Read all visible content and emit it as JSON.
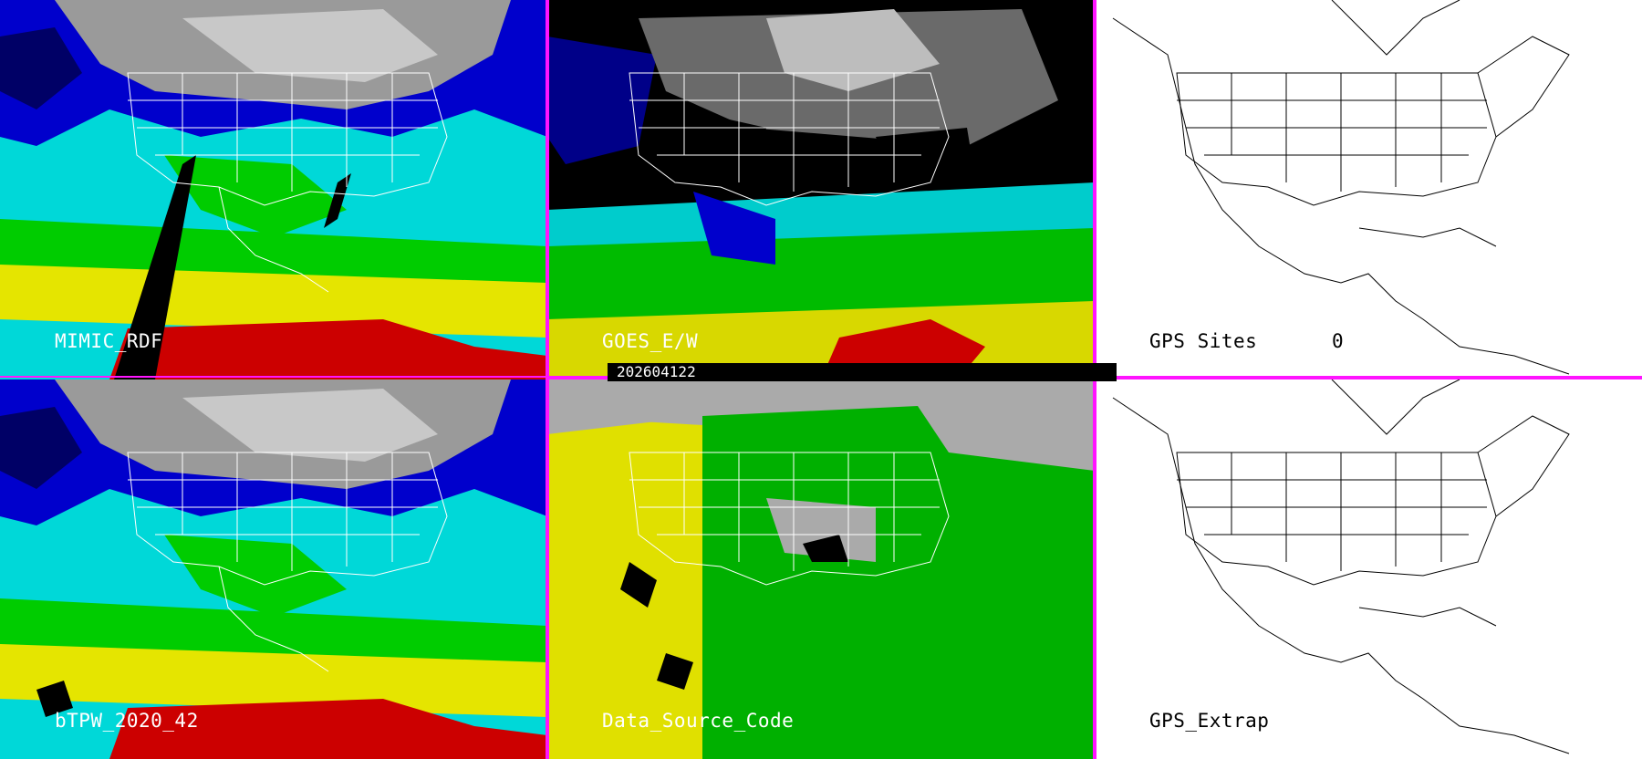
{
  "timestamp": "202604122",
  "panels": [
    {
      "label": "MIMIC_RDF",
      "theme": "tpw"
    },
    {
      "label": "GOES_E/W",
      "theme": "goes"
    },
    {
      "label": "GPS Sites",
      "count": "0",
      "theme": "white"
    },
    {
      "label": "bTPW_2020_42",
      "theme": "tpw"
    },
    {
      "label": "Data_Source_Code",
      "theme": "dsc"
    },
    {
      "label": "GPS_Extrap",
      "theme": "white"
    }
  ],
  "colors": {
    "panel_border": "#ff14ff",
    "tpw_dry": "#000066",
    "tpw_low": "#0000cc",
    "tpw_mid": "#00e5e5",
    "tpw_green": "#00cc00",
    "tpw_yellow": "#e5e500",
    "tpw_red": "#cc0000",
    "cloud_gray": "#9a9a9a",
    "dsc_gray": "#aaaaaa",
    "dsc_yellow": "#e0e000",
    "dsc_green": "#00b000"
  }
}
